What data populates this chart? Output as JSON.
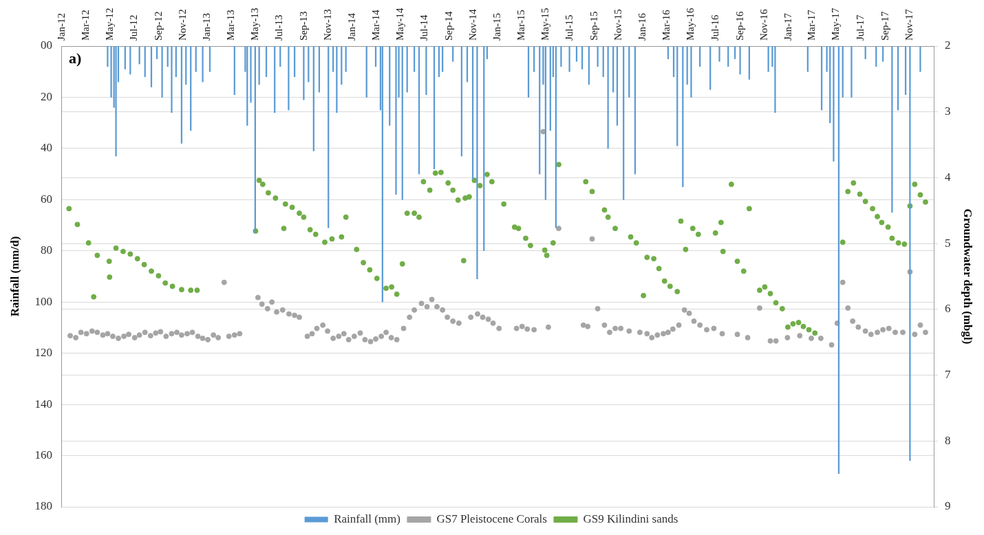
{
  "chart_data": {
    "type": "bar",
    "ylabel": "Rainfall (mm/d)",
    "y2label": "Groundwater depth (mbgl)",
    "annotations": [
      "a)"
    ],
    "xlim": [
      "2012-01-01",
      "2018-01-01"
    ],
    "xticks": [
      {
        "value": "2012-01-01",
        "label": "Jan-12"
      },
      {
        "value": "2012-03-01",
        "label": "Mar-12"
      },
      {
        "value": "2012-05-01",
        "label": "May-12"
      },
      {
        "value": "2012-07-01",
        "label": "Jul-12"
      },
      {
        "value": "2012-09-01",
        "label": "Sep-12"
      },
      {
        "value": "2012-11-01",
        "label": "Nov-12"
      },
      {
        "value": "2013-01-01",
        "label": "Jan-13"
      },
      {
        "value": "2013-03-01",
        "label": "Mar-13"
      },
      {
        "value": "2013-05-01",
        "label": "May-13"
      },
      {
        "value": "2013-07-01",
        "label": "Jul-13"
      },
      {
        "value": "2013-09-01",
        "label": "Sep-13"
      },
      {
        "value": "2013-11-01",
        "label": "Nov-13"
      },
      {
        "value": "2014-01-01",
        "label": "Jan-14"
      },
      {
        "value": "2014-03-01",
        "label": "Mar-14"
      },
      {
        "value": "2014-05-01",
        "label": "May-14"
      },
      {
        "value": "2014-07-01",
        "label": "Jul-14"
      },
      {
        "value": "2014-09-01",
        "label": "Sep-14"
      },
      {
        "value": "2014-11-01",
        "label": "Nov-14"
      },
      {
        "value": "2015-01-01",
        "label": "Jan-15"
      },
      {
        "value": "2015-03-01",
        "label": "Mar-15"
      },
      {
        "value": "2015-05-01",
        "label": "May-15"
      },
      {
        "value": "2015-07-01",
        "label": "Jul-15"
      },
      {
        "value": "2015-09-01",
        "label": "Sep-15"
      },
      {
        "value": "2015-11-01",
        "label": "Nov-15"
      },
      {
        "value": "2016-01-01",
        "label": "Jan-16"
      },
      {
        "value": "2016-03-01",
        "label": "Mar-16"
      },
      {
        "value": "2016-05-01",
        "label": "May-16"
      },
      {
        "value": "2016-07-01",
        "label": "Jul-16"
      },
      {
        "value": "2016-09-01",
        "label": "Sep-16"
      },
      {
        "value": "2016-11-01",
        "label": "Nov-16"
      },
      {
        "value": "2017-01-01",
        "label": "Jan-17"
      },
      {
        "value": "2017-03-01",
        "label": "Mar-17"
      },
      {
        "value": "2017-05-01",
        "label": "May-17"
      },
      {
        "value": "2017-07-01",
        "label": "Jul-17"
      },
      {
        "value": "2017-09-01",
        "label": "Sep-17"
      },
      {
        "value": "2017-11-01",
        "label": "Nov-17"
      }
    ],
    "ylim": [
      180,
      0
    ],
    "yticks": [
      {
        "value": 0,
        "label": "00"
      },
      20,
      40,
      60,
      80,
      100,
      120,
      140,
      160,
      180
    ],
    "y2lim": [
      9,
      2
    ],
    "y2ticks": [
      2,
      3,
      4,
      5,
      6,
      7,
      8,
      9
    ],
    "grid": "y",
    "legend": "bottom",
    "marker": "circle",
    "series": [
      {
        "name": "Rainfall (mm)",
        "color": "#5b9bd5",
        "x": [
          "2012-04-25",
          "2012-05-04",
          "2012-05-11",
          "2012-05-16",
          "2012-05-22",
          "2012-06-08",
          "2012-06-21",
          "2012-07-14",
          "2012-07-28",
          "2012-08-13",
          "2012-08-27",
          "2012-09-09",
          "2012-09-23",
          "2012-10-03",
          "2012-10-14",
          "2012-10-28",
          "2012-11-08",
          "2012-11-20",
          "2012-12-03",
          "2012-12-20",
          "2013-01-07",
          "2013-03-10",
          "2013-04-06",
          "2013-04-11",
          "2013-04-20",
          "2013-05-01",
          "2013-05-11",
          "2013-05-29",
          "2013-06-19",
          "2013-07-03",
          "2013-07-24",
          "2013-08-08",
          "2013-08-31",
          "2013-09-12",
          "2013-09-25",
          "2013-10-09",
          "2013-11-01",
          "2013-11-13",
          "2013-11-22",
          "2013-12-04",
          "2013-12-15",
          "2014-02-05",
          "2014-02-28",
          "2014-03-12",
          "2014-03-17",
          "2014-04-04",
          "2014-04-20",
          "2014-04-27",
          "2014-05-06",
          "2014-05-18",
          "2014-06-05",
          "2014-06-17",
          "2014-07-05",
          "2014-07-25",
          "2014-08-06",
          "2014-08-15",
          "2014-09-10",
          "2014-10-02",
          "2014-10-16",
          "2014-10-30",
          "2014-11-10",
          "2014-11-27",
          "2014-12-05",
          "2015-03-19",
          "2015-04-02",
          "2015-04-16",
          "2015-04-25",
          "2015-05-01",
          "2015-05-13",
          "2015-05-20",
          "2015-05-27",
          "2015-06-09",
          "2015-06-30",
          "2015-07-18",
          "2015-08-01",
          "2015-08-18",
          "2015-09-09",
          "2015-09-23",
          "2015-10-05",
          "2015-10-18",
          "2015-10-28",
          "2015-11-13",
          "2015-11-27",
          "2015-12-12",
          "2016-03-04",
          "2016-03-18",
          "2016-03-27",
          "2016-04-10",
          "2016-04-21",
          "2016-05-01",
          "2016-05-23",
          "2016-06-18",
          "2016-07-11",
          "2016-08-02",
          "2016-08-19",
          "2016-09-01",
          "2016-09-24",
          "2016-11-11",
          "2016-11-21",
          "2016-11-28",
          "2017-02-18",
          "2017-03-25",
          "2017-04-07",
          "2017-04-15",
          "2017-04-24",
          "2017-05-07",
          "2017-05-17",
          "2017-06-08",
          "2017-07-13",
          "2017-08-09",
          "2017-08-26",
          "2017-09-18",
          "2017-10-03",
          "2017-10-22",
          "2017-11-02",
          "2017-11-28"
        ],
        "values": [
          8,
          20,
          24,
          43,
          14,
          9,
          11,
          7,
          12,
          16,
          5,
          20,
          8,
          26,
          12,
          38,
          15,
          33,
          10,
          14,
          10,
          19,
          10,
          31,
          22,
          73,
          15,
          12,
          26,
          8,
          25,
          12,
          21,
          14,
          41,
          18,
          71,
          10,
          26,
          15,
          10,
          20,
          8,
          25,
          100,
          31,
          58,
          20,
          60,
          18,
          10,
          50,
          19,
          48,
          12,
          10,
          6,
          43,
          14,
          52,
          91,
          80,
          5,
          20,
          10,
          50,
          15,
          60,
          33,
          12,
          71,
          8,
          10,
          6,
          9,
          15,
          8,
          12,
          40,
          18,
          31,
          60,
          20,
          50,
          5,
          12,
          39,
          55,
          15,
          20,
          8,
          17,
          6,
          8,
          5,
          11,
          13,
          10,
          8,
          26,
          10,
          25,
          10,
          30,
          45,
          167,
          20,
          20,
          5,
          8,
          6,
          65,
          25,
          19,
          162,
          10
        ]
      },
      {
        "name": "GS7 Pleistocene Corals",
        "type": "scatter",
        "axis": "y2",
        "color": "#a5a5a5",
        "x": [
          "2012-01-22",
          "2012-02-05",
          "2012-02-18",
          "2012-03-03",
          "2012-03-17",
          "2012-03-30",
          "2012-04-13",
          "2012-04-25",
          "2012-05-08",
          "2012-05-22",
          "2012-06-05",
          "2012-06-17",
          "2012-07-02",
          "2012-07-14",
          "2012-07-28",
          "2012-08-11",
          "2012-08-24",
          "2012-09-05",
          "2012-09-19",
          "2012-10-03",
          "2012-10-16",
          "2012-10-28",
          "2012-11-11",
          "2012-11-24",
          "2012-12-08",
          "2012-12-20",
          "2013-01-02",
          "2013-01-16",
          "2013-01-28",
          "2013-02-12",
          "2013-02-24",
          "2013-03-10",
          "2013-03-23",
          "2013-05-08",
          "2013-05-18",
          "2013-06-01",
          "2013-06-12",
          "2013-06-24",
          "2013-07-09",
          "2013-07-25",
          "2013-08-08",
          "2013-08-20",
          "2013-09-09",
          "2013-09-21",
          "2013-10-03",
          "2013-10-18",
          "2013-10-30",
          "2013-11-13",
          "2013-11-27",
          "2013-12-10",
          "2013-12-22",
          "2014-01-05",
          "2014-01-20",
          "2014-02-01",
          "2014-02-15",
          "2014-02-28",
          "2014-03-14",
          "2014-03-26",
          "2014-04-08",
          "2014-04-22",
          "2014-05-09",
          "2014-05-24",
          "2014-06-05",
          "2014-06-23",
          "2014-07-07",
          "2014-07-19",
          "2014-08-01",
          "2014-08-15",
          "2014-08-27",
          "2014-09-10",
          "2014-09-25",
          "2014-10-25",
          "2014-11-11",
          "2014-11-24",
          "2014-12-08",
          "2014-12-20",
          "2015-01-04",
          "2015-02-17",
          "2015-03-03",
          "2015-03-16",
          "2015-04-02",
          "2015-04-25",
          "2015-05-08",
          "2015-06-03",
          "2015-08-04",
          "2015-08-15",
          "2015-08-26",
          "2015-09-09",
          "2015-09-26",
          "2015-10-09",
          "2015-10-23",
          "2015-11-06",
          "2015-11-27",
          "2015-12-24",
          "2016-01-11",
          "2016-01-23",
          "2016-02-06",
          "2016-02-21",
          "2016-03-04",
          "2016-03-16",
          "2016-03-31",
          "2016-04-14",
          "2016-04-26",
          "2016-05-08",
          "2016-05-23",
          "2016-06-09",
          "2016-06-27",
          "2016-07-18",
          "2016-08-25",
          "2016-09-20",
          "2016-10-20",
          "2016-11-16",
          "2016-11-30",
          "2016-12-29",
          "2017-01-29",
          "2017-02-27",
          "2017-03-23",
          "2017-04-19",
          "2017-05-03",
          "2017-05-17",
          "2017-05-30",
          "2017-06-11",
          "2017-06-25",
          "2017-07-13",
          "2017-07-27",
          "2017-08-12",
          "2017-08-26",
          "2017-09-10",
          "2017-09-26",
          "2017-10-15",
          "2017-11-02",
          "2017-11-14",
          "2017-11-28",
          "2017-12-11"
        ],
        "values": [
          6.4,
          6.43,
          6.35,
          6.37,
          6.33,
          6.35,
          6.39,
          6.37,
          6.41,
          6.44,
          6.41,
          6.38,
          6.43,
          6.39,
          6.35,
          6.4,
          6.36,
          6.34,
          6.41,
          6.37,
          6.35,
          6.39,
          6.37,
          6.35,
          6.41,
          6.44,
          6.46,
          6.39,
          6.43,
          5.59,
          6.41,
          6.39,
          6.37,
          5.82,
          5.92,
          5.99,
          5.89,
          6.04,
          6.01,
          6.07,
          6.09,
          6.12,
          6.41,
          6.37,
          6.29,
          6.24,
          6.33,
          6.44,
          6.41,
          6.37,
          6.46,
          6.41,
          6.36,
          6.46,
          6.49,
          6.45,
          6.41,
          6.35,
          6.43,
          6.46,
          6.29,
          6.12,
          6.01,
          5.91,
          5.96,
          5.85,
          5.96,
          6.01,
          6.12,
          6.18,
          6.21,
          6.12,
          6.07,
          6.12,
          6.15,
          6.21,
          6.29,
          6.29,
          6.26,
          6.3,
          6.31,
          3.3,
          6.27,
          4.77,
          6.24,
          6.26,
          4.93,
          5.99,
          6.24,
          6.35,
          6.29,
          6.29,
          6.33,
          6.35,
          6.37,
          6.43,
          6.39,
          6.37,
          6.35,
          6.3,
          6.24,
          6.01,
          6.06,
          6.18,
          6.24,
          6.31,
          6.29,
          6.37,
          6.38,
          6.43,
          5.98,
          6.48,
          6.48,
          6.43,
          6.4,
          6.44,
          6.44,
          6.54,
          6.21,
          5.59,
          5.98,
          6.18,
          6.27,
          6.33,
          6.38,
          6.35,
          6.31,
          6.29,
          6.35,
          6.35,
          5.43,
          6.38,
          6.24,
          6.35
        ]
      },
      {
        "name": "GS9 Kilindini sands",
        "type": "scatter",
        "axis": "y2",
        "color": "#70ad47",
        "x": [
          "2012-01-19",
          "2012-02-09",
          "2012-03-08",
          "2012-03-21",
          "2012-03-30",
          "2012-04-29",
          "2012-04-30",
          "2012-05-16",
          "2012-06-03",
          "2012-06-21",
          "2012-07-09",
          "2012-07-26",
          "2012-08-13",
          "2012-08-31",
          "2012-09-17",
          "2012-10-05",
          "2012-10-28",
          "2012-11-20",
          "2012-12-06",
          "2013-05-02",
          "2013-05-11",
          "2013-05-20",
          "2013-06-03",
          "2013-06-21",
          "2013-07-12",
          "2013-07-16",
          "2013-08-02",
          "2013-08-20",
          "2013-08-31",
          "2013-09-16",
          "2013-09-30",
          "2013-10-23",
          "2013-11-10",
          "2013-12-04",
          "2013-12-15",
          "2014-01-11",
          "2014-01-28",
          "2014-02-13",
          "2014-03-03",
          "2014-03-26",
          "2014-04-09",
          "2014-04-22",
          "2014-05-06",
          "2014-05-18",
          "2014-06-05",
          "2014-06-17",
          "2014-06-28",
          "2014-07-14",
          "2014-07-28",
          "2014-08-11",
          "2014-08-29",
          "2014-09-10",
          "2014-09-23",
          "2014-10-07",
          "2014-10-11",
          "2014-10-21",
          "2014-11-03",
          "2014-11-17",
          "2014-12-05",
          "2014-12-17",
          "2015-01-16",
          "2015-02-12",
          "2015-02-22",
          "2015-03-12",
          "2015-03-24",
          "2015-04-29",
          "2015-05-04",
          "2015-05-20",
          "2015-06-03",
          "2015-08-10",
          "2015-08-26",
          "2015-09-26",
          "2015-10-05",
          "2015-10-23",
          "2015-12-01",
          "2015-12-15",
          "2016-01-02",
          "2016-01-11",
          "2016-01-28",
          "2016-02-10",
          "2016-02-24",
          "2016-03-09",
          "2016-03-27",
          "2016-04-05",
          "2016-04-17",
          "2016-05-05",
          "2016-05-19",
          "2016-07-01",
          "2016-07-15",
          "2016-07-20",
          "2016-08-10",
          "2016-08-25",
          "2016-09-10",
          "2016-09-24",
          "2016-10-20",
          "2016-11-02",
          "2016-11-16",
          "2016-11-30",
          "2016-12-16",
          "2016-12-30",
          "2017-01-12",
          "2017-01-26",
          "2017-02-07",
          "2017-02-21",
          "2017-03-08",
          "2017-05-17",
          "2017-05-30",
          "2017-06-13",
          "2017-06-29",
          "2017-07-13",
          "2017-07-31",
          "2017-08-12",
          "2017-08-23",
          "2017-09-08",
          "2017-09-18",
          "2017-10-04",
          "2017-10-19",
          "2017-11-02",
          "2017-11-14",
          "2017-11-28",
          "2017-12-11"
        ],
        "values": [
          4.47,
          4.71,
          4.99,
          5.81,
          5.18,
          5.27,
          5.51,
          5.07,
          5.12,
          5.16,
          5.23,
          5.32,
          5.42,
          5.49,
          5.6,
          5.65,
          5.7,
          5.71,
          5.71,
          4.81,
          4.04,
          4.1,
          4.23,
          4.31,
          4.77,
          4.4,
          4.45,
          4.54,
          4.6,
          4.79,
          4.86,
          4.98,
          4.93,
          4.9,
          4.6,
          5.09,
          5.29,
          5.4,
          5.53,
          5.68,
          5.66,
          5.77,
          5.31,
          4.54,
          4.54,
          4.6,
          4.06,
          4.19,
          3.93,
          3.92,
          4.08,
          4.19,
          4.34,
          5.26,
          4.31,
          4.29,
          4.04,
          4.12,
          3.95,
          4.06,
          4.4,
          4.75,
          4.77,
          4.92,
          5.03,
          5.1,
          5.18,
          4.99,
          3.8,
          4.06,
          4.21,
          4.49,
          4.6,
          4.77,
          4.9,
          4.99,
          5.79,
          5.21,
          5.23,
          5.38,
          5.57,
          5.65,
          5.73,
          4.66,
          5.09,
          4.77,
          4.86,
          4.84,
          4.68,
          5.12,
          4.1,
          5.27,
          5.42,
          4.47,
          5.71,
          5.66,
          5.76,
          5.9,
          5.99,
          6.27,
          6.22,
          6.2,
          6.26,
          6.31,
          6.36,
          4.98,
          4.21,
          4.08,
          4.25,
          4.36,
          4.47,
          4.59,
          4.68,
          4.75,
          4.92,
          4.99,
          5.01,
          4.43,
          4.1,
          4.26,
          4.37
        ]
      }
    ]
  }
}
